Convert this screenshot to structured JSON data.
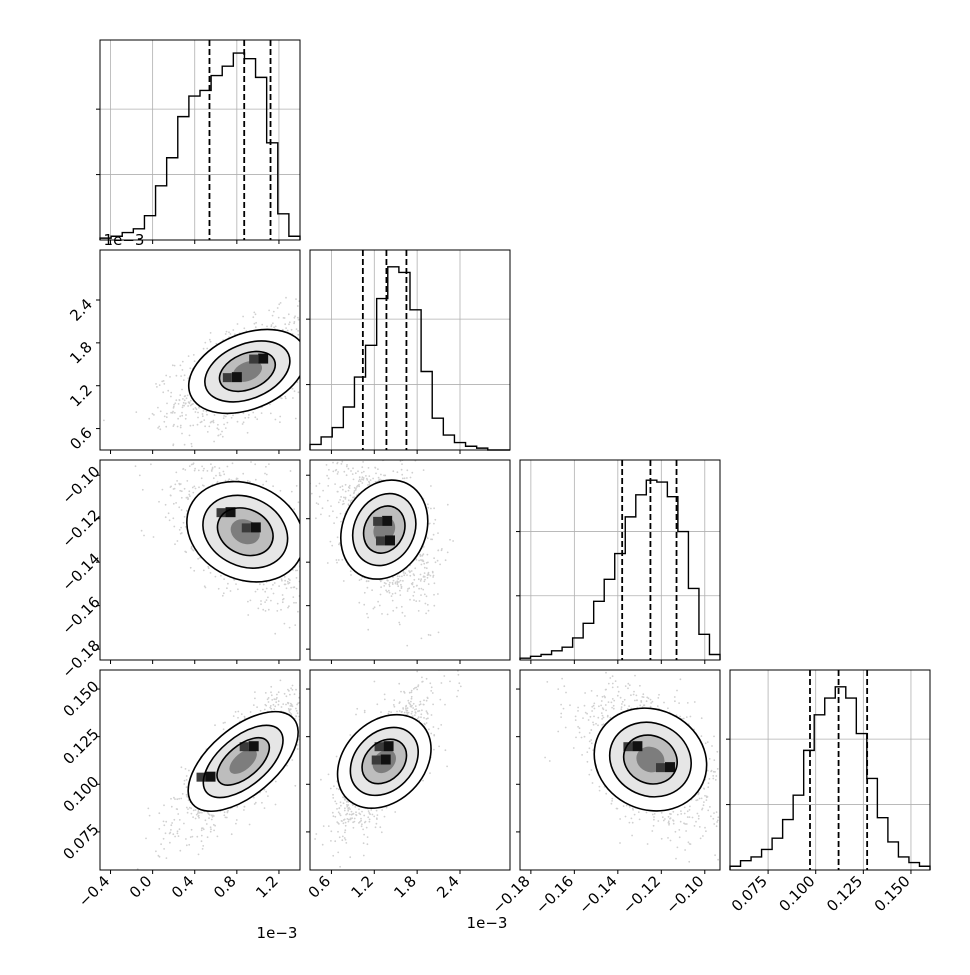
{
  "figure": {
    "type": "corner-plot",
    "grid": true,
    "histogram_style": "step",
    "quantiles": [
      0.16,
      0.5,
      0.84
    ]
  },
  "axes_text": {
    "x_offset_col0": "1e−3",
    "x_offset_col1": "1e−3",
    "y_offset_row1": "1e−3",
    "col0_ticks": [
      "−0.4",
      "0.0",
      "0.4",
      "0.8",
      "1.2"
    ],
    "col1_ticks": [
      "0.6",
      "1.2",
      "1.8",
      "2.4"
    ],
    "col2_ticks": [
      "−0.18",
      "−0.16",
      "−0.14",
      "−0.12",
      "−0.10"
    ],
    "col3_ticks": [
      "0.075",
      "0.100",
      "0.125",
      "0.150"
    ],
    "row1_ticks": [
      "0.6",
      "1.2",
      "1.8",
      "2.4"
    ],
    "row2_ticks": [
      "−0.18",
      "−0.16",
      "−0.14",
      "−0.12",
      "−0.10"
    ],
    "row3_ticks": [
      "0.075",
      "0.100",
      "0.125",
      "0.150"
    ]
  },
  "chart_data": {
    "type": "corner",
    "parameters": [
      {
        "range": [
          -0.0005,
          0.0014
        ],
        "ticks": [
          -0.0004,
          0.0,
          0.0004,
          0.0008,
          0.0012
        ],
        "quantiles": [
          0.00054,
          0.00087,
          0.00112
        ]
      },
      {
        "range": [
          0.0003,
          0.0031
        ],
        "ticks": [
          0.0006,
          0.0012,
          0.0018,
          0.0024
        ],
        "quantiles": [
          0.00104,
          0.00137,
          0.00165
        ]
      },
      {
        "range": [
          -0.185,
          -0.093
        ],
        "ticks": [
          -0.18,
          -0.16,
          -0.14,
          -0.12,
          -0.1
        ],
        "quantiles": [
          -0.138,
          -0.125,
          -0.113
        ]
      },
      {
        "range": [
          0.055,
          0.16
        ],
        "ticks": [
          0.075,
          0.1,
          0.125,
          0.15
        ],
        "quantiles": [
          0.097,
          0.112,
          0.127
        ]
      }
    ],
    "histograms": [
      {
        "ylim": [
          0,
          1.07
        ],
        "values": [
          0.01,
          0.02,
          0.04,
          0.06,
          0.13,
          0.29,
          0.44,
          0.66,
          0.77,
          0.8,
          0.88,
          0.93,
          1.0,
          0.97,
          0.87,
          0.52,
          0.14,
          0.02
        ]
      },
      {
        "ylim": [
          0,
          1.07
        ],
        "values": [
          0.03,
          0.07,
          0.12,
          0.23,
          0.39,
          0.56,
          0.81,
          0.98,
          0.95,
          0.75,
          0.42,
          0.17,
          0.08,
          0.04,
          0.02,
          0.01,
          0.0,
          0.0
        ]
      },
      {
        "ylim": [
          0,
          1.09
        ],
        "values": [
          0.01,
          0.02,
          0.03,
          0.05,
          0.07,
          0.12,
          0.2,
          0.32,
          0.44,
          0.58,
          0.78,
          0.9,
          0.98,
          0.97,
          0.89,
          0.7,
          0.39,
          0.14,
          0.03
        ]
      },
      {
        "ylim": [
          0,
          1.07
        ],
        "values": [
          0.02,
          0.05,
          0.07,
          0.11,
          0.17,
          0.27,
          0.4,
          0.64,
          0.83,
          0.92,
          0.98,
          0.92,
          0.73,
          0.49,
          0.28,
          0.15,
          0.07,
          0.04,
          0.02
        ]
      }
    ],
    "pairs": [
      {
        "x": 0,
        "y": 1,
        "rho": 0.55,
        "mean": [
          0.0009,
          0.0014
        ],
        "sd": [
          0.00027,
          0.0003
        ],
        "peaks": [
          [
            0.0008,
            0.00132
          ],
          [
            0.00105,
            0.00158
          ]
        ]
      },
      {
        "x": 0,
        "y": 2,
        "rho": -0.5,
        "mean": [
          0.00088,
          -0.126
        ],
        "sd": [
          0.00026,
          0.012
        ],
        "peaks": [
          [
            0.00074,
            -0.117
          ],
          [
            0.00098,
            -0.124
          ]
        ]
      },
      {
        "x": 0,
        "y": 3,
        "rho": 0.8,
        "mean": [
          0.00086,
          0.112
        ],
        "sd": [
          0.00024,
          0.014
        ],
        "peaks": [
          [
            0.00055,
            0.104
          ],
          [
            0.00096,
            0.12
          ]
        ]
      },
      {
        "x": 1,
        "y": 2,
        "rho": -0.35,
        "mean": [
          0.00134,
          -0.125
        ],
        "sd": [
          0.00026,
          0.012
        ],
        "peaks": [
          [
            0.00138,
            -0.121
          ],
          [
            0.00142,
            -0.13
          ]
        ]
      },
      {
        "x": 1,
        "y": 3,
        "rho": 0.7,
        "mean": [
          0.00134,
          0.112
        ],
        "sd": [
          0.00026,
          0.014
        ],
        "peaks": [
          [
            0.00136,
            0.113
          ],
          [
            0.0014,
            0.12
          ]
        ]
      },
      {
        "x": 2,
        "y": 3,
        "rho": -0.45,
        "mean": [
          -0.125,
          0.113
        ],
        "sd": [
          0.012,
          0.014
        ],
        "peaks": [
          [
            -0.131,
            0.12
          ],
          [
            -0.116,
            0.109
          ]
        ]
      }
    ],
    "scatter_color": "#aaaaaa",
    "line_color": "#000000"
  }
}
